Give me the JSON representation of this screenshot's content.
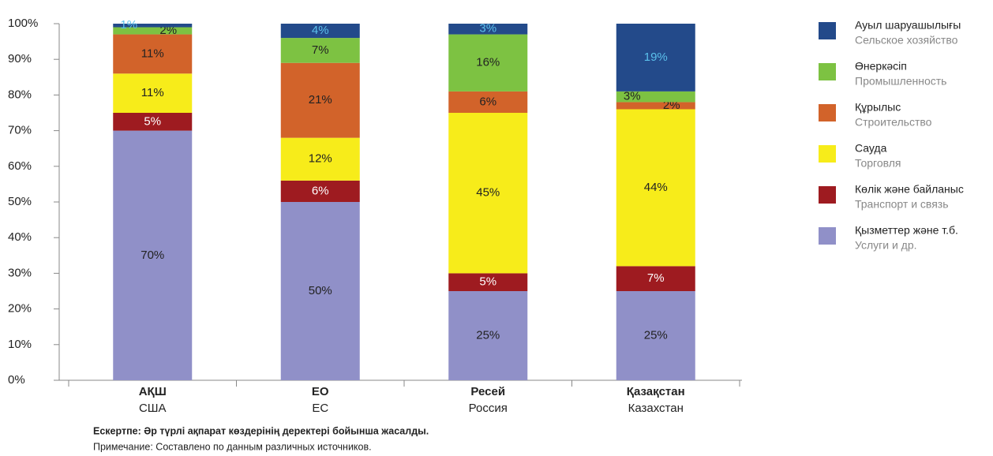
{
  "chart_data": {
    "type": "stacked_bar",
    "categories": [
      "АҚШ",
      "ЕО",
      "Ресей",
      "Қазақстан"
    ],
    "categories_ru": [
      "США",
      "ЕС",
      "Россия",
      "Казахстан"
    ],
    "series": [
      {
        "name": "Қызметтер және т.б.",
        "name_ru": "Услуги и др.",
        "color": "#9090c8",
        "label_color": "#222222",
        "values": [
          70,
          50,
          25,
          25
        ],
        "value_labels": [
          "70%",
          "50%",
          "25%",
          "25%"
        ]
      },
      {
        "name": "Көлік және байланыс",
        "name_ru": "Транспорт и связь",
        "color": "#9e1b20",
        "label_color": "#ffffff",
        "values": [
          5,
          6,
          5,
          7
        ],
        "value_labels": [
          "5%",
          "6%",
          "5%",
          "7%"
        ]
      },
      {
        "name": "Сауда",
        "name_ru": "Торговля",
        "color": "#f7ec1a",
        "label_color": "#222222",
        "values": [
          11,
          12,
          45,
          44
        ],
        "value_labels": [
          "11%",
          "12%",
          "45%",
          "44%"
        ]
      },
      {
        "name": "Құрылыс",
        "name_ru": "Строительство",
        "color": "#d2632a",
        "label_color": "#222222",
        "values": [
          11,
          21,
          6,
          2
        ],
        "value_labels": [
          "11%",
          "21%",
          "6%",
          "2%"
        ]
      },
      {
        "name": "Өнеркәсіп",
        "name_ru": "Промышленность",
        "color": "#7dc242",
        "label_color": "#222222",
        "values": [
          2,
          7,
          16,
          3
        ],
        "value_labels": [
          "2%",
          "7%",
          "16%",
          "3%"
        ]
      },
      {
        "name": "Ауыл шаруашылығы",
        "name_ru": "Сельское хозяйство",
        "color": "#234a8a",
        "label_color": "#5bc0eb",
        "values": [
          1,
          4,
          3,
          19
        ],
        "value_labels": [
          "1%",
          "4%",
          "3%",
          "19%"
        ]
      }
    ],
    "ylim": [
      0,
      100
    ],
    "yticks": [
      {
        "value": 0,
        "label": "0%"
      },
      {
        "value": 10,
        "label": "10%"
      },
      {
        "value": 20,
        "label": "20%"
      },
      {
        "value": 30,
        "label": "30%"
      },
      {
        "value": 40,
        "label": "40%"
      },
      {
        "value": 50,
        "label": "50%"
      },
      {
        "value": 60,
        "label": "60%"
      },
      {
        "value": 70,
        "label": "70%"
      },
      {
        "value": 80,
        "label": "80%"
      },
      {
        "value": 90,
        "label": "90%"
      },
      {
        "value": 100,
        "label": "100%"
      }
    ],
    "notes": [
      "Ескертпе:  Әр түрлі ақпарат көздерінің деректері бойынша жасалды.",
      "Примечание: Составлено по данным различных источников."
    ]
  }
}
